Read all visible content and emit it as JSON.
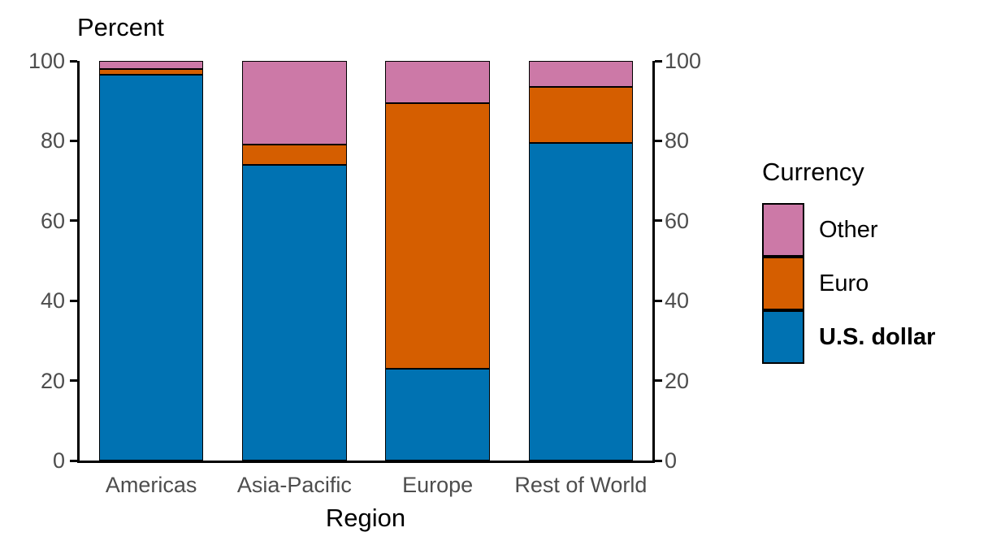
{
  "chart_data": {
    "type": "bar",
    "stacked": true,
    "ylabel": "Percent",
    "xlabel": "Region",
    "categories": [
      "Americas",
      "Asia-Pacific",
      "Europe",
      "Rest of World"
    ],
    "series": [
      {
        "name": "U.S. dollar",
        "color": "#0072B2",
        "values": [
          96.5,
          74.0,
          23.0,
          79.5
        ]
      },
      {
        "name": "Euro",
        "color": "#D55E00",
        "values": [
          1.5,
          5.0,
          66.5,
          14.0
        ]
      },
      {
        "name": "Other",
        "color": "#CC79A7",
        "values": [
          2.0,
          21.0,
          10.5,
          6.5
        ]
      }
    ],
    "ylim": [
      0,
      100
    ],
    "yticks": [
      0,
      20,
      40,
      60,
      80,
      100
    ],
    "grid": false,
    "legend": {
      "title": "Currency",
      "position": "right",
      "entries": [
        {
          "label": "Other",
          "bold": false
        },
        {
          "label": "Euro",
          "bold": false
        },
        {
          "label": "U.S. dollar",
          "bold": true
        }
      ]
    }
  }
}
